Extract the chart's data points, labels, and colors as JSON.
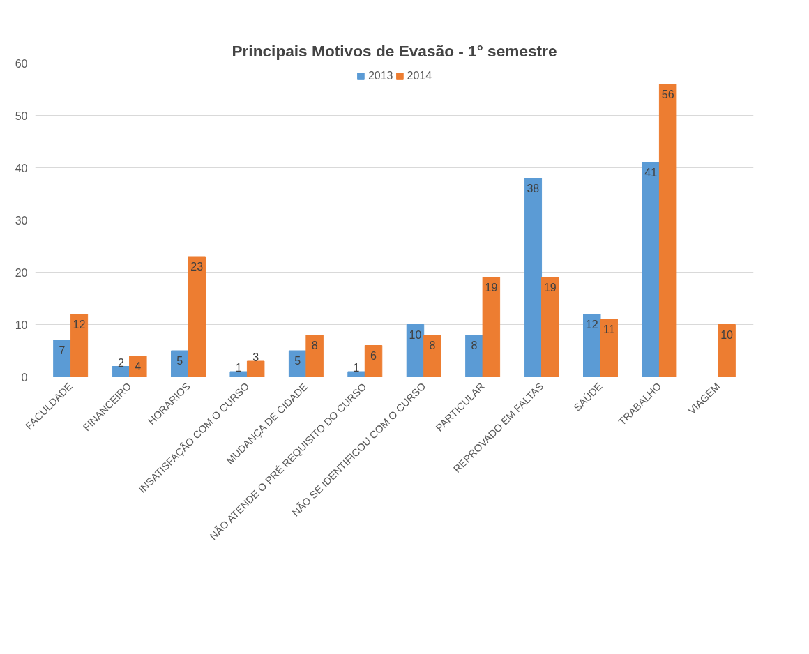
{
  "chart_data": {
    "type": "bar",
    "title": "Principais Motivos de Evasão - 1° semestre",
    "categories": [
      "FACULDADE",
      "FINANCEIRO",
      "HORÁRIOS",
      "INSATISFAÇÃO COM O CURSO",
      "MUDANÇA DE CIDADE",
      "NÃO ATENDE O PRÉ REQUISITO DO CURSO",
      "NÃO SE IDENTIFICOU COM O CURSO",
      "PARTICULAR",
      "REPROVADO EM FALTAS",
      "SAÚDE",
      "TRABALHO",
      "VIAGEM"
    ],
    "series": [
      {
        "name": "2013",
        "color": "#5b9bd5",
        "values": [
          7,
          2,
          5,
          1,
          5,
          1,
          10,
          8,
          38,
          12,
          41,
          null
        ]
      },
      {
        "name": "2014",
        "color": "#ed7d31",
        "values": [
          12,
          4,
          23,
          3,
          8,
          6,
          8,
          19,
          19,
          11,
          56,
          10
        ]
      }
    ],
    "ylim": [
      0,
      60
    ],
    "yticks": [
      0,
      10,
      20,
      30,
      40,
      50,
      60
    ],
    "grid": "y",
    "legend": "top",
    "data_labels": true
  }
}
